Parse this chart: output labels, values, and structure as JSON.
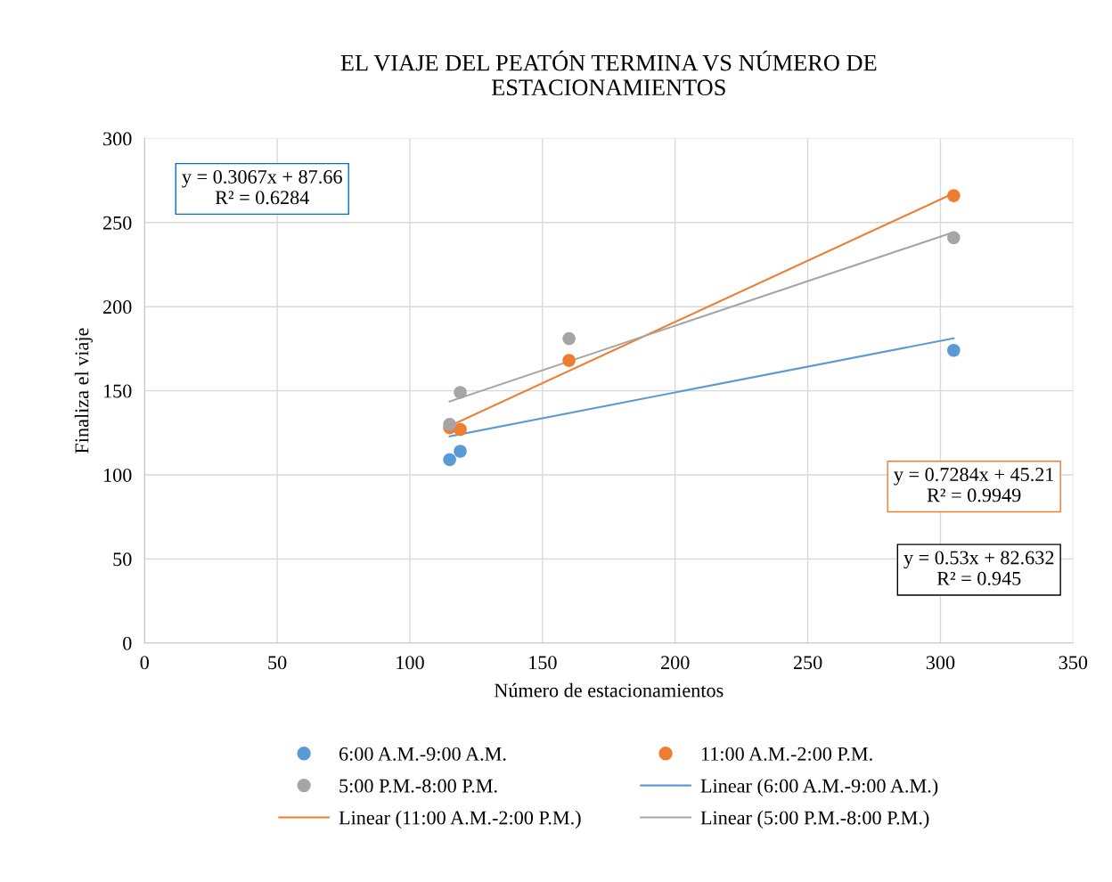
{
  "chart_data": {
    "type": "scatter",
    "title": "EL VIAJE DEL PEATÓN TERMINA VS NÚMERO DE\nESTACIONAMIENTOS",
    "xlabel": "Número de estacionamientos",
    "ylabel": "Finaliza el viaje",
    "x": [
      115,
      119,
      160,
      305
    ],
    "series": [
      {
        "name": "6:00 A.M.-9:00 A.M.",
        "color": "#5b9bd5",
        "values": [
          109,
          114,
          null,
          174
        ]
      },
      {
        "name": "11:00 A.M.-2:00 P.M.",
        "color": "#ed7d31",
        "values": [
          128,
          127,
          168,
          266
        ]
      },
      {
        "name": "5:00 P.M.-8:00 P.M.",
        "color": "#a5a5a5",
        "values": [
          130,
          149,
          181,
          241
        ]
      },
      {
        "name": "Linear (6:00 A.M.-9:00 A.M.)",
        "type": "line",
        "color": "#5b9bd5",
        "values": [
          122.9,
          null,
          null,
          181.2
        ]
      },
      {
        "name": "Linear (11:00 A.M.-2:00 P.M.)",
        "type": "line",
        "color": "#ed7d31",
        "values": [
          129.0,
          null,
          null,
          267.4
        ]
      },
      {
        "name": "Linear (5:00 P.M.-8:00 P.M.)",
        "type": "line",
        "color": "#a5a5a5",
        "values": [
          143.6,
          null,
          null,
          244.3
        ]
      }
    ],
    "annotations": [
      "y = 0.3067x + 87.66\nR² = 0.6284",
      "y = 0.7284x + 45.21\nR² = 0.9949",
      "y = 0.53x + 82.632\nR² = 0.945"
    ],
    "xlim": [
      0,
      350
    ],
    "xticks": [
      0,
      50,
      100,
      150,
      200,
      250,
      300,
      350
    ],
    "ylim": [
      0,
      300
    ],
    "yticks": [
      0,
      50,
      100,
      150,
      200,
      250,
      300
    ],
    "grid": true,
    "legend": "bottom"
  }
}
